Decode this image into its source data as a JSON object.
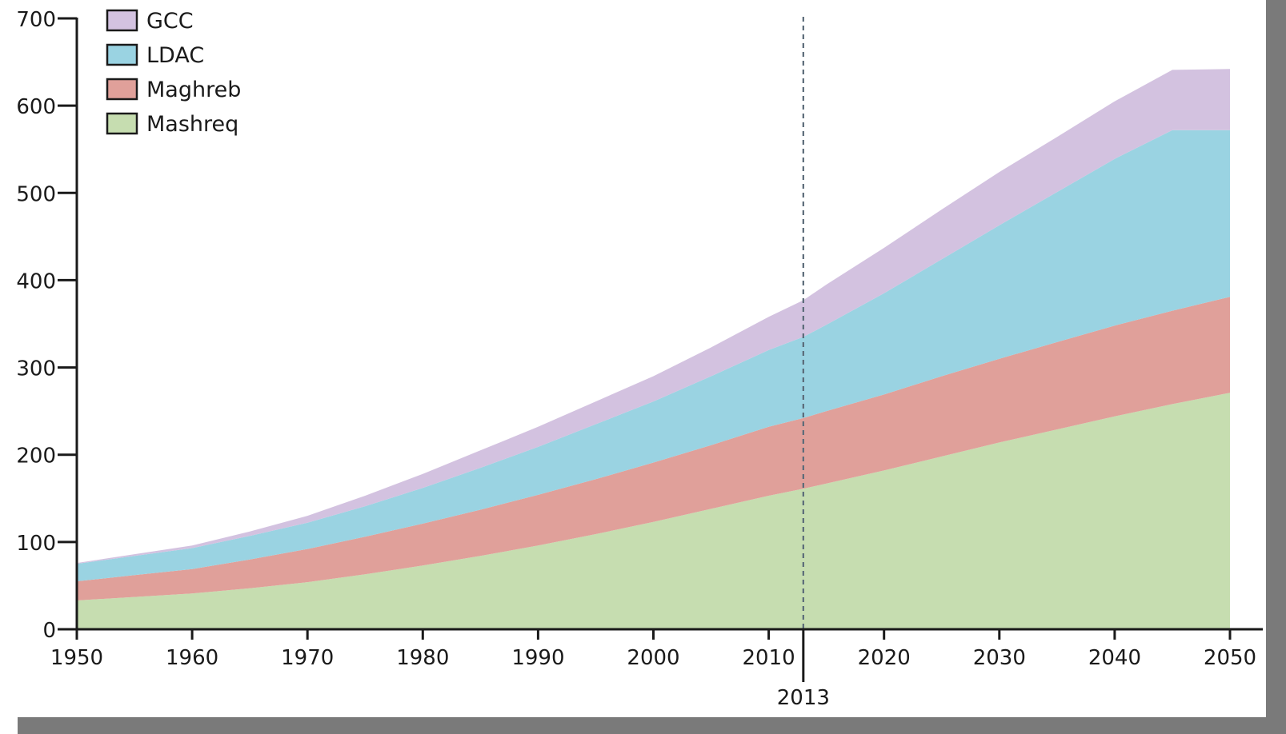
{
  "chart_data": {
    "type": "area",
    "stacked": true,
    "x": [
      1950,
      1955,
      1960,
      1965,
      1970,
      1975,
      1980,
      1985,
      1990,
      1995,
      2000,
      2005,
      2010,
      2013,
      2015,
      2020,
      2025,
      2030,
      2035,
      2040,
      2045,
      2050
    ],
    "xlim": [
      1950,
      2050
    ],
    "ylim": [
      0,
      700
    ],
    "x_ticks": [
      "1950",
      "1960",
      "1970",
      "1980",
      "1990",
      "2000",
      "2010",
      "2020",
      "2030",
      "2040",
      "2050"
    ],
    "y_ticks": [
      "0",
      "100",
      "200",
      "300",
      "400",
      "500",
      "600",
      "700"
    ],
    "series": [
      {
        "name": "Mashreq",
        "color": "#c6ddb0",
        "values": [
          33,
          37,
          41,
          47,
          54,
          63,
          73,
          84,
          96,
          109,
          123,
          138,
          153,
          161,
          167,
          182,
          198,
          214,
          229,
          244,
          258,
          271
        ]
      },
      {
        "name": "Maghreb",
        "color": "#e0a09a",
        "values": [
          22,
          25,
          28,
          33,
          38,
          43,
          48,
          53,
          58,
          63,
          68,
          73,
          79,
          81,
          83,
          87,
          92,
          96,
          100,
          104,
          107,
          110
        ]
      },
      {
        "name": "LDAC",
        "color": "#9ad3e2",
        "values": [
          20,
          22,
          24,
          27,
          30,
          35,
          41,
          48,
          55,
          63,
          70,
          79,
          88,
          93,
          99,
          116,
          134,
          153,
          172,
          191,
          207,
          191
        ]
      },
      {
        "name": "GCC",
        "color": "#d3c2e0",
        "values": [
          1,
          2,
          3,
          5,
          8,
          12,
          16,
          20,
          23,
          26,
          29,
          33,
          38,
          42,
          46,
          52,
          57,
          61,
          63,
          66,
          69,
          70
        ]
      }
    ],
    "legend_position": "top-left",
    "legend": [
      "GCC",
      "LDAC",
      "Maghreb",
      "Mashreq"
    ],
    "vertical_marker": {
      "x": 2013,
      "label": "2013",
      "style": "dashed"
    },
    "grid": false
  },
  "colors": {
    "axis": "#1a1a1a",
    "marker_line": "#5a6a78",
    "frame": "#7a7a7a"
  }
}
